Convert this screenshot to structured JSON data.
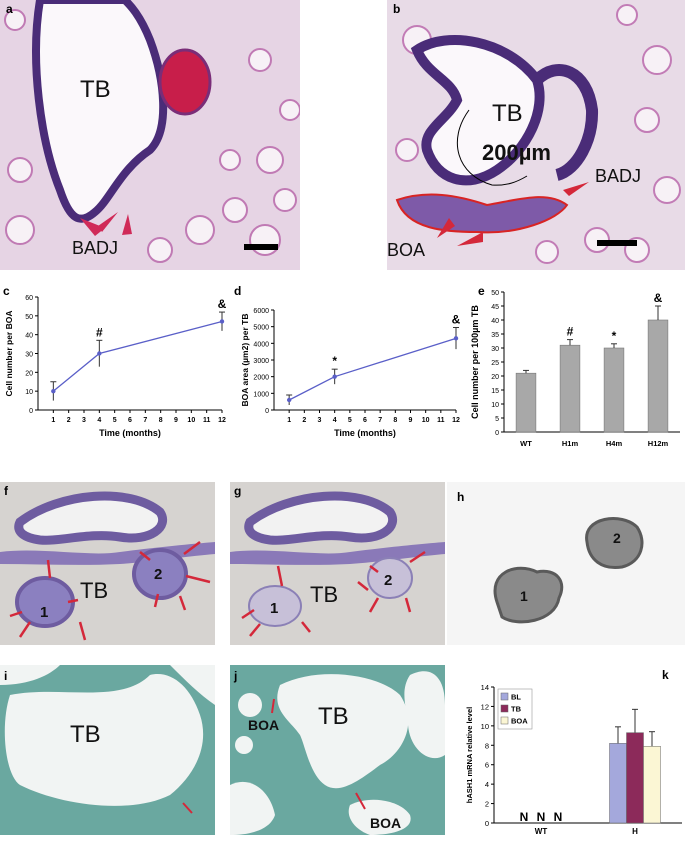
{
  "panels": {
    "a": {
      "letter": "a",
      "labels": {
        "tb": "TB",
        "badj": "BADJ"
      }
    },
    "b": {
      "letter": "b",
      "labels": {
        "tb": "TB",
        "scale": "200µm",
        "badj": "BADJ",
        "boa": "BOA"
      }
    },
    "f": {
      "letter": "f",
      "labels": {
        "tb": "TB",
        "n1": "1",
        "n2": "2"
      }
    },
    "g": {
      "letter": "g",
      "labels": {
        "tb": "TB",
        "n1": "1",
        "n2": "2"
      }
    },
    "h": {
      "letter": "h",
      "labels": {
        "n1": "1",
        "n2": "2"
      }
    },
    "i": {
      "letter": "i",
      "labels": {
        "tb": "TB"
      }
    },
    "j": {
      "letter": "j",
      "labels": {
        "tb": "TB",
        "boa1": "BOA",
        "boa2": "BOA"
      }
    }
  },
  "colors": {
    "he_bg": "#e9dbe6",
    "he_tissue": "#b24a98",
    "he_dark": "#4a2c78",
    "ihc_bg": "#d5d2cf",
    "ihc_tissue": "#6e5ca0",
    "green_bg": "#e8efee",
    "green_tissue": "#6aa8a0",
    "arrow_red": "#d4283a",
    "line_blue": "#5a5fc8",
    "bar_gray": "#a8a8a8"
  },
  "chart_data": [
    {
      "panel": "c",
      "type": "line",
      "xlabel": "Time (months)",
      "ylabel": "Cell number per BOA",
      "xlim": [
        0,
        12
      ],
      "ylim": [
        0,
        60
      ],
      "xticks": [
        1,
        2,
        3,
        4,
        5,
        6,
        7,
        8,
        9,
        10,
        11,
        12
      ],
      "yticks": [
        0,
        10,
        20,
        30,
        40,
        50,
        60
      ],
      "x": [
        1,
        4,
        12
      ],
      "y": [
        10,
        30,
        47
      ],
      "err": [
        5,
        7,
        5
      ],
      "annotations": [
        {
          "x": 4,
          "text": "#"
        },
        {
          "x": 12,
          "text": "&"
        }
      ]
    },
    {
      "panel": "d",
      "type": "line",
      "xlabel": "Time (months)",
      "ylabel": "BOA area (µm2) per TB",
      "xlim": [
        0,
        12
      ],
      "ylim": [
        0,
        6000
      ],
      "xticks": [
        1,
        2,
        3,
        4,
        5,
        6,
        7,
        8,
        9,
        10,
        11,
        12
      ],
      "yticks": [
        0,
        1000,
        2000,
        3000,
        4000,
        5000,
        6000
      ],
      "x": [
        1,
        4,
        12
      ],
      "y": [
        600,
        2000,
        4300
      ],
      "err": [
        300,
        450,
        650
      ],
      "annotations": [
        {
          "x": 4,
          "text": "*"
        },
        {
          "x": 12,
          "text": "&"
        }
      ]
    },
    {
      "panel": "e",
      "type": "bar",
      "ylabel": "Cell number per 100µm TB",
      "ylim": [
        0,
        50
      ],
      "yticks": [
        0,
        5,
        10,
        15,
        20,
        25,
        30,
        35,
        40,
        45,
        50
      ],
      "categories": [
        "WT",
        "H1m",
        "H4m",
        "H12m"
      ],
      "values": [
        21,
        31,
        30,
        40
      ],
      "err": [
        1,
        2,
        1.5,
        5
      ],
      "annotations": [
        "",
        "#",
        "*",
        "&"
      ]
    },
    {
      "panel": "k",
      "type": "bar",
      "ylabel": "hASH1 mRNA relative level",
      "ylim": [
        0,
        14
      ],
      "yticks": [
        0,
        2,
        4,
        6,
        8,
        10,
        12,
        14
      ],
      "categories": [
        "WT",
        "H"
      ],
      "series": [
        {
          "name": "BL",
          "color": "#a4a8dc",
          "values": [
            0,
            8.2
          ],
          "err": [
            0,
            1.7
          ]
        },
        {
          "name": "TB",
          "color": "#8c2a5a",
          "values": [
            0,
            9.3
          ],
          "err": [
            0,
            2.4
          ]
        },
        {
          "name": "BOA",
          "color": "#fbf6d4",
          "values": [
            0,
            7.9
          ],
          "err": [
            0,
            1.5
          ]
        }
      ],
      "zero_labels": [
        "N",
        "N",
        "N"
      ]
    }
  ]
}
